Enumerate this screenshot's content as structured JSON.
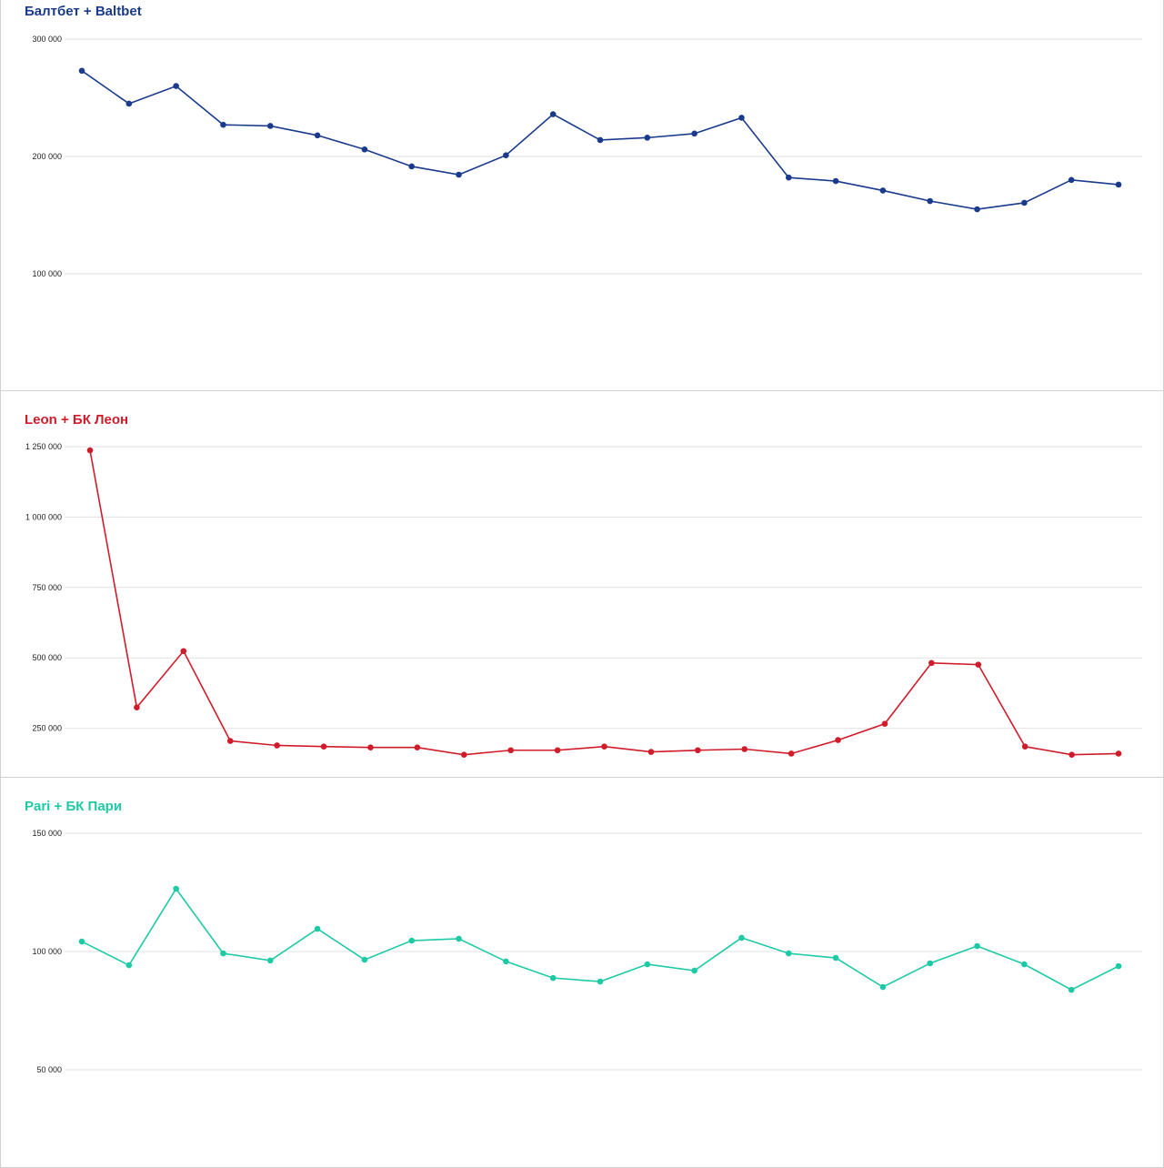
{
  "chart_data": [
    {
      "type": "line",
      "title": "Балтбет + Baltbet",
      "color": "#1a3a8c",
      "ylim": [
        0,
        300000
      ],
      "yticks": [
        300000,
        200000,
        100000
      ],
      "ytick_labels": [
        "300 000",
        "200 000",
        "100 000"
      ],
      "grid": true,
      "values": [
        273000,
        245000,
        260000,
        227000,
        226000,
        218000,
        206000,
        191500,
        184500,
        201000,
        236000,
        214000,
        216000,
        219500,
        233000,
        182000,
        179000,
        171000,
        162000,
        155000,
        160500,
        180000,
        176000
      ]
    },
    {
      "type": "line",
      "title": "Leon + БК Леон",
      "color": "#d01c2a",
      "ylim": [
        0,
        1250000
      ],
      "yticks": [
        1250000,
        1000000,
        750000,
        500000,
        250000
      ],
      "ytick_labels": [
        "1 250 000",
        "1 000 000",
        "750 000",
        "500 000",
        "250 000"
      ],
      "grid": true,
      "values": [
        1237000,
        324000,
        524000,
        205000,
        189000,
        185000,
        182000,
        182000,
        156000,
        172000,
        172000,
        185000,
        166000,
        172000,
        176000,
        160000,
        208000,
        266000,
        482000,
        476000,
        185000,
        156000,
        160000
      ]
    },
    {
      "type": "line",
      "title": "Pari + БК Пари",
      "color": "#1ec9a5",
      "ylim": [
        0,
        150000
      ],
      "yticks": [
        150000,
        100000,
        50000
      ],
      "ytick_labels": [
        "150 000",
        "100 000",
        "50 000"
      ],
      "grid": true,
      "values": [
        104200,
        94200,
        126500,
        99200,
        96200,
        109600,
        96500,
        104600,
        105400,
        95800,
        88800,
        87300,
        94600,
        91900,
        105800,
        99200,
        97300,
        85000,
        95000,
        102300,
        94600,
        83800,
        93800
      ]
    }
  ]
}
